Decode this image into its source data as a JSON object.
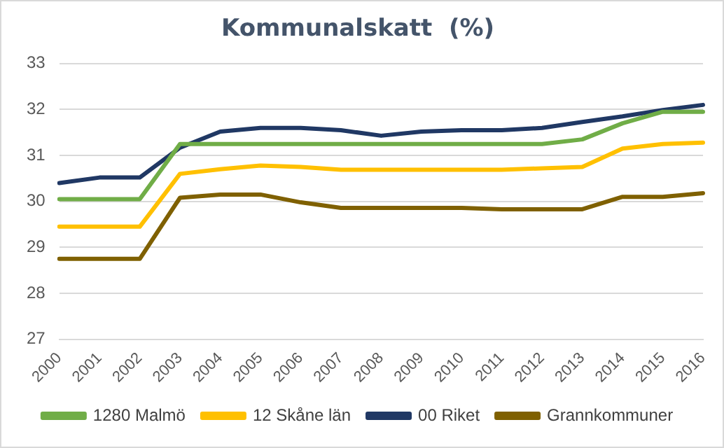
{
  "chart_data": {
    "type": "line",
    "title": "Kommunalskatt  (%)",
    "categories": [
      "2000",
      "2001",
      "2002",
      "2003",
      "2004",
      "2005",
      "2006",
      "2007",
      "2008",
      "2009",
      "2010",
      "2011",
      "2012",
      "2013",
      "2014",
      "2015",
      "2016"
    ],
    "series": [
      {
        "name": "1280 Malmö",
        "color": "#70ad47",
        "values": [
          30.05,
          30.05,
          30.05,
          31.25,
          31.25,
          31.25,
          31.25,
          31.25,
          31.25,
          31.25,
          31.25,
          31.25,
          31.25,
          31.35,
          31.7,
          31.95,
          31.95
        ]
      },
      {
        "name": "12 Skåne län",
        "color": "#ffc000",
        "values": [
          29.45,
          29.45,
          29.45,
          30.6,
          30.7,
          30.78,
          30.75,
          30.69,
          30.69,
          30.69,
          30.69,
          30.69,
          30.72,
          30.75,
          31.15,
          31.25,
          31.28
        ]
      },
      {
        "name": "00 Riket",
        "color": "#203864",
        "values": [
          30.4,
          30.52,
          30.52,
          31.17,
          31.52,
          31.6,
          31.6,
          31.55,
          31.43,
          31.52,
          31.55,
          31.55,
          31.6,
          31.73,
          31.85,
          31.99,
          32.1
        ]
      },
      {
        "name": "Grannkommuner",
        "color": "#7f6000",
        "values": [
          28.75,
          28.75,
          28.75,
          30.08,
          30.15,
          30.15,
          29.98,
          29.86,
          29.86,
          29.86,
          29.86,
          29.83,
          29.83,
          29.83,
          30.1,
          30.1,
          30.18
        ]
      }
    ],
    "ylim": [
      27,
      33
    ],
    "yticks": [
      27,
      28,
      29,
      30,
      31,
      32,
      33
    ],
    "grid": "y",
    "legend": "bottom",
    "marker": "none",
    "line_style": "solid"
  }
}
